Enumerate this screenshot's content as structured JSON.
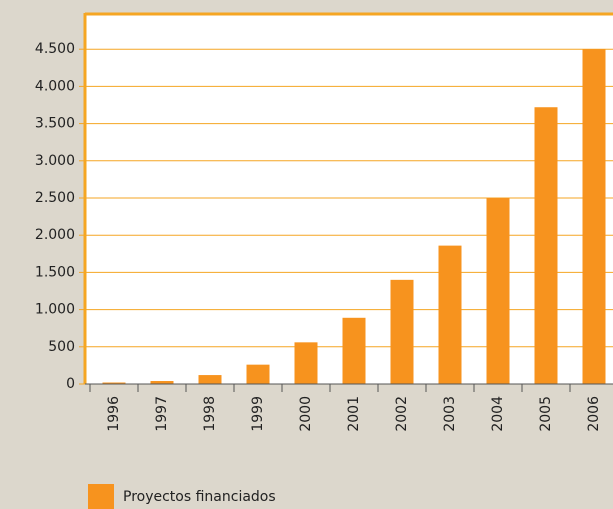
{
  "chart_data": {
    "type": "bar",
    "categories": [
      "1996",
      "1997",
      "1998",
      "1999",
      "2000",
      "2001",
      "2002",
      "2003",
      "2004",
      "2005",
      "2006"
    ],
    "series": [
      {
        "name": "Proyectos financiados",
        "color": "#f7931e",
        "values": [
          20,
          40,
          120,
          260,
          560,
          890,
          1400,
          1860,
          2500,
          3720,
          4500
        ]
      }
    ],
    "ylim": [
      0,
      5000
    ],
    "yticks": [
      0,
      500,
      {
        "value": 1000,
        "label": "1.000"
      },
      {
        "value": 1500,
        "label": "1.500"
      },
      {
        "value": 2000,
        "label": "2.000"
      },
      {
        "value": 2500,
        "label": "2.500"
      },
      {
        "value": 3000,
        "label": "3.000"
      },
      {
        "value": 3500,
        "label": "3.500"
      },
      {
        "value": 4000,
        "label": "4.000"
      },
      {
        "value": 4500,
        "label": "4.500"
      }
    ],
    "grid": true,
    "grid_color": "#f5a623",
    "legend": "bottom-left"
  }
}
